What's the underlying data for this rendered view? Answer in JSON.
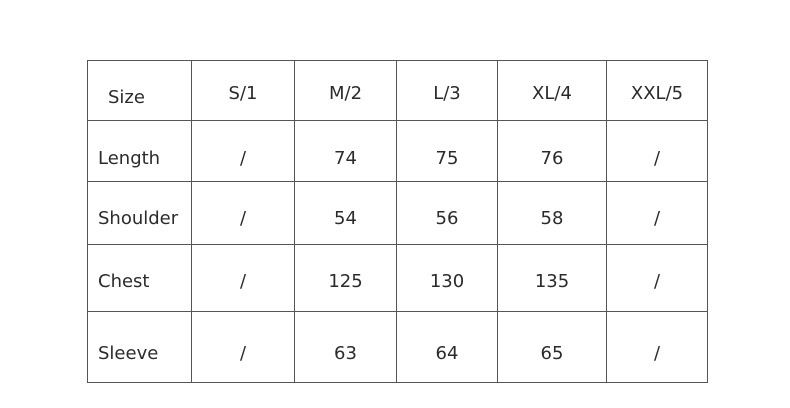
{
  "size_chart": {
    "header": [
      "Size",
      "S/1",
      "M/2",
      "L/3",
      "XL/4",
      "XXL/5"
    ],
    "rows": [
      {
        "label": "Length",
        "values": [
          "/",
          "74",
          "75",
          "76",
          "/"
        ]
      },
      {
        "label": "Shoulder",
        "values": [
          "/",
          "54",
          "56",
          "58",
          "/"
        ]
      },
      {
        "label": "Chest",
        "values": [
          "/",
          "125",
          "130",
          "135",
          "/"
        ]
      },
      {
        "label": "Sleeve",
        "values": [
          "/",
          "63",
          "64",
          "65",
          "/"
        ]
      }
    ]
  }
}
